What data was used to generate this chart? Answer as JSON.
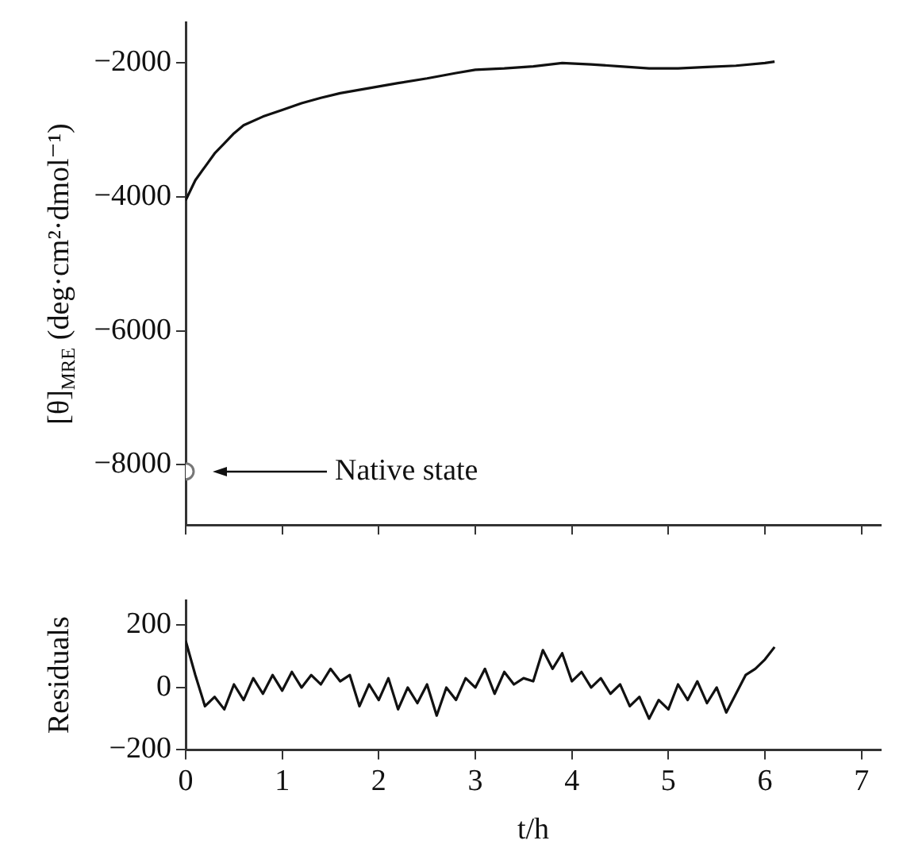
{
  "chart_data": [
    {
      "type": "line",
      "ylabel": "[θ]$_{MRE}$ (deg·cm²·dmol⁻¹)",
      "xlim": [
        0,
        7.2
      ],
      "xticks": [
        0,
        1,
        2,
        3,
        4,
        5,
        6,
        7
      ],
      "ylim": [
        -8900,
        -1400
      ],
      "yticks": [
        -8000,
        -6000,
        -4000,
        -2000
      ],
      "tick_labels": "y",
      "grid": false,
      "legend": false,
      "annotations": [
        "Native state"
      ],
      "series": [
        {
          "x": [
            0,
            0.1,
            0.2,
            0.3,
            0.4,
            0.5,
            0.6,
            0.8,
            1,
            1.2,
            1.4,
            1.6,
            1.8,
            2,
            2.2,
            2.5,
            2.8,
            3,
            3.3,
            3.6,
            3.9,
            4.2,
            4.5,
            4.8,
            5.1,
            5.4,
            5.7,
            6,
            6.1
          ],
          "values": [
            -4050,
            -3750,
            -3550,
            -3350,
            -3200,
            -3050,
            -2930,
            -2800,
            -2700,
            -2600,
            -2520,
            -2450,
            -2400,
            -2350,
            -2300,
            -2230,
            -2150,
            -2100,
            -2080,
            -2050,
            -2000,
            -2020,
            -2050,
            -2080,
            -2080,
            -2060,
            -2040,
            -2000,
            -1980
          ],
          "color": "#111111",
          "marker": "none",
          "line_style": "solid"
        },
        {
          "type": "scatter",
          "x": [
            0
          ],
          "values": [
            -8100
          ],
          "color": "#777777",
          "marker": "circle"
        }
      ]
    },
    {
      "type": "line",
      "xlabel": "t/h",
      "ylabel": "Residuals",
      "xlim": [
        0,
        7.2
      ],
      "xticks": [
        0,
        1,
        2,
        3,
        4,
        5,
        6,
        7
      ],
      "ylim": [
        -200,
        280
      ],
      "yticks": [
        -200,
        0,
        200
      ],
      "grid": false,
      "legend": false,
      "series": [
        {
          "x": [
            0,
            0.1,
            0.2,
            0.3,
            0.4,
            0.5,
            0.6,
            0.7,
            0.8,
            0.9,
            1,
            1.1,
            1.2,
            1.3,
            1.4,
            1.5,
            1.6,
            1.7,
            1.8,
            1.9,
            2,
            2.1,
            2.2,
            2.3,
            2.4,
            2.5,
            2.6,
            2.7,
            2.8,
            2.9,
            3,
            3.1,
            3.2,
            3.3,
            3.4,
            3.5,
            3.6,
            3.7,
            3.8,
            3.9,
            4,
            4.1,
            4.2,
            4.3,
            4.4,
            4.5,
            4.6,
            4.7,
            4.8,
            4.9,
            5,
            5.1,
            5.2,
            5.3,
            5.4,
            5.5,
            5.6,
            5.7,
            5.8,
            5.9,
            6,
            6.1
          ],
          "values": [
            150,
            40,
            -60,
            -30,
            -70,
            10,
            -40,
            30,
            -20,
            40,
            -10,
            50,
            0,
            40,
            10,
            60,
            20,
            40,
            -60,
            10,
            -40,
            30,
            -70,
            0,
            -50,
            10,
            -90,
            0,
            -40,
            30,
            0,
            60,
            -20,
            50,
            10,
            30,
            20,
            120,
            60,
            110,
            20,
            50,
            0,
            30,
            -20,
            10,
            -60,
            -30,
            -100,
            -40,
            -70,
            10,
            -40,
            20,
            -50,
            0,
            -80,
            -20,
            40,
            60,
            90,
            130
          ],
          "color": "#111111",
          "marker": "none",
          "line_style": "solid"
        }
      ]
    }
  ]
}
